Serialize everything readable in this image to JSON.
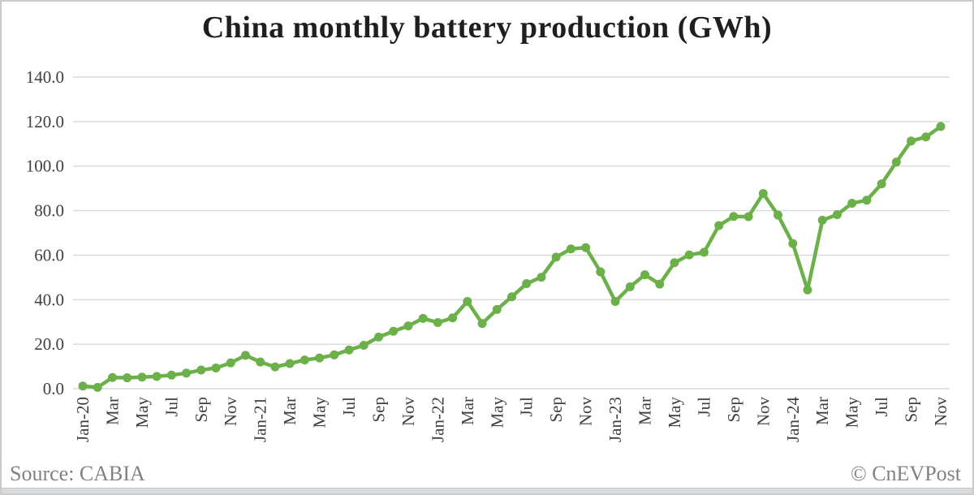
{
  "chart": {
    "title": "China monthly battery production (GWh)",
    "source_label": "Source: CABIA",
    "copyright_label": "© CnEVPost"
  },
  "chart_data": {
    "type": "line",
    "title": "China monthly battery production (GWh)",
    "xlabel": "",
    "ylabel": "",
    "ylim": [
      0,
      140
    ],
    "ytick_step": 20,
    "ytick_labels": [
      "0.0",
      "20.0",
      "40.0",
      "60.0",
      "80.0",
      "100.0",
      "120.0",
      "140.0"
    ],
    "xtick_every": 2,
    "grid": true,
    "legend": "none",
    "line_color": "#6cb04a",
    "grid_color": "#d9d9d9",
    "tick_label_color": "#3f3f3f",
    "categories": [
      "Jan-20",
      "Feb-20",
      "Mar-20",
      "Apr-20",
      "May-20",
      "Jun-20",
      "Jul-20",
      "Aug-20",
      "Sep-20",
      "Oct-20",
      "Nov-20",
      "Dec-20",
      "Jan-21",
      "Feb-21",
      "Mar-21",
      "Apr-21",
      "May-21",
      "Jun-21",
      "Jul-21",
      "Aug-21",
      "Sep-21",
      "Oct-21",
      "Nov-21",
      "Dec-21",
      "Jan-22",
      "Feb-22",
      "Mar-22",
      "Apr-22",
      "May-22",
      "Jun-22",
      "Jul-22",
      "Aug-22",
      "Sep-22",
      "Oct-22",
      "Nov-22",
      "Dec-22",
      "Jan-23",
      "Feb-23",
      "Mar-23",
      "Apr-23",
      "May-23",
      "Jun-23",
      "Jul-23",
      "Aug-23",
      "Sep-23",
      "Oct-23",
      "Nov-23",
      "Dec-23",
      "Jan-24",
      "Feb-24",
      "Mar-24",
      "Apr-24",
      "May-24",
      "Jun-24",
      "Jul-24",
      "Aug-24",
      "Sep-24",
      "Oct-24",
      "Nov-24"
    ],
    "values": [
      1.2,
      0.6,
      5.0,
      4.9,
      5.2,
      5.5,
      6.1,
      7.0,
      8.4,
      9.3,
      11.6,
      15.0,
      12.0,
      9.8,
      11.3,
      12.9,
      13.8,
      15.2,
      17.4,
      19.5,
      23.2,
      25.8,
      28.2,
      31.6,
      29.7,
      31.8,
      39.2,
      29.3,
      35.6,
      41.3,
      47.2,
      50.1,
      59.1,
      62.8,
      63.4,
      52.5,
      39.2,
      45.8,
      51.2,
      47.0,
      56.6,
      60.1,
      61.3,
      73.3,
      77.4,
      77.3,
      87.7,
      78.0,
      65.2,
      44.4,
      75.7,
      78.2,
      83.3,
      84.7,
      92.0,
      101.8,
      111.3,
      113.1,
      117.8
    ]
  }
}
